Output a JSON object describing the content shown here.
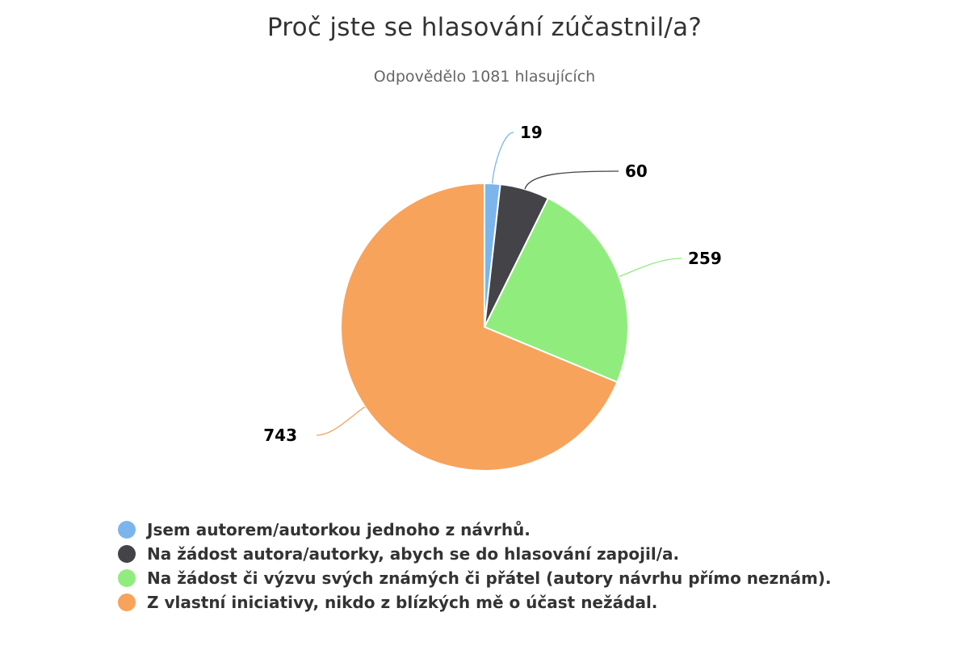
{
  "chart_data": {
    "type": "pie",
    "title": "Proč jste se hlasování zúčastnil/a?",
    "subtitle": "Odpovědělo 1081 hlasujících",
    "categories": [
      "Jsem autorem/autorkou jednoho z návrhů.",
      "Na žádost autora/autorky, abych se do hlasování zapojil/a.",
      "Na žádost či výzvu svých známých či přátel (autory návrhu přímo neznám).",
      "Z vlastní iniciativy, nikdo z blízkých mě o účast nežádal."
    ],
    "values": [
      19,
      60,
      259,
      743
    ],
    "data_labels": [
      "19",
      "60",
      "259",
      "743"
    ],
    "colors": [
      "#7cb5ec",
      "#434348",
      "#90ed7d",
      "#f7a35c"
    ],
    "legend_position": "bottom-left"
  }
}
